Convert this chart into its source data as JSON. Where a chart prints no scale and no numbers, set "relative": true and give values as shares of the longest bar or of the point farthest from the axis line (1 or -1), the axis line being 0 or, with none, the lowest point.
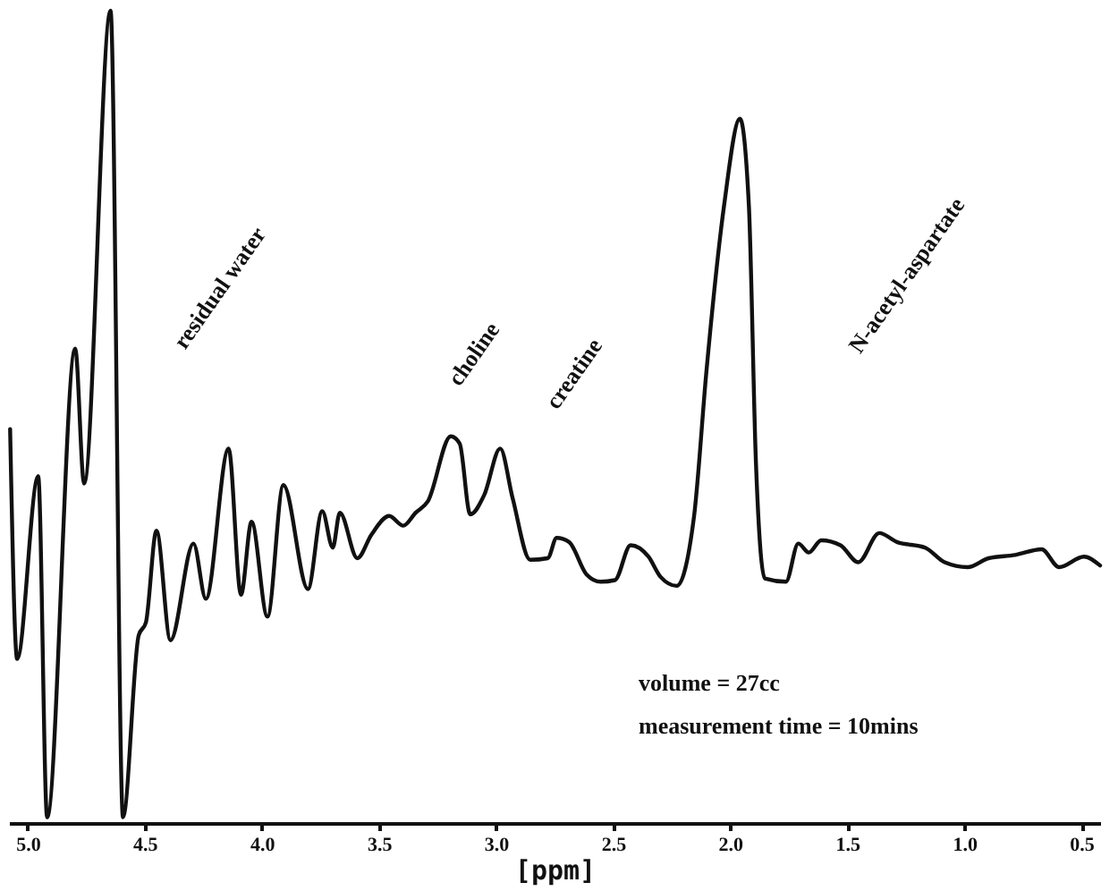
{
  "chart_data": {
    "type": "line",
    "relative": true,
    "xlabel": "[ppm]",
    "xlim": [
      5.08,
      0.42
    ],
    "xticks": [
      {
        "value": 5,
        "label": "5.0"
      },
      4.5,
      {
        "value": 4,
        "label": "4.0"
      },
      3.5,
      {
        "value": 3,
        "label": "3.0"
      },
      2.5,
      {
        "value": 2,
        "label": "2.0"
      },
      1.5,
      {
        "value": 1,
        "label": "1.0"
      },
      0.5
    ],
    "x": [
      5.075,
      5.045,
      4.955,
      4.917,
      4.797,
      4.759,
      4.646,
      4.593,
      4.526,
      4.495,
      4.45,
      4.39,
      4.292,
      4.239,
      4.142,
      4.089,
      4.044,
      3.976,
      3.908,
      3.803,
      3.742,
      3.697,
      3.667,
      3.592,
      3.532,
      3.456,
      3.396,
      3.343,
      3.291,
      3.193,
      3.155,
      3.11,
      3.05,
      2.982,
      2.929,
      2.854,
      2.779,
      2.741,
      2.688,
      2.613,
      2.553,
      2.492,
      2.425,
      2.349,
      2.297,
      2.229,
      2.154,
      2.101,
      2.026,
      1.958,
      1.92,
      1.89,
      1.852,
      1.762,
      1.709,
      1.664,
      1.611,
      1.529,
      1.453,
      1.363,
      1.288,
      1.167,
      1.084,
      0.986,
      0.896,
      0.783,
      0.67,
      0.595,
      0.489,
      0.42
    ],
    "series": [
      {
        "color": "#111111",
        "values": [
          0.485,
          0.202,
          0.427,
          0.007,
          0.584,
          0.418,
          1.0,
          0.007,
          0.231,
          0.247,
          0.36,
          0.225,
          0.344,
          0.276,
          0.461,
          0.281,
          0.371,
          0.254,
          0.416,
          0.288,
          0.384,
          0.339,
          0.382,
          0.326,
          0.355,
          0.378,
          0.366,
          0.382,
          0.396,
          0.476,
          0.467,
          0.38,
          0.404,
          0.461,
          0.4,
          0.324,
          0.326,
          0.351,
          0.346,
          0.306,
          0.297,
          0.299,
          0.342,
          0.328,
          0.303,
          0.292,
          0.378,
          0.557,
          0.76,
          0.867,
          0.76,
          0.445,
          0.301,
          0.297,
          0.344,
          0.333,
          0.348,
          0.342,
          0.321,
          0.357,
          0.346,
          0.339,
          0.321,
          0.315,
          0.326,
          0.33,
          0.337,
          0.315,
          0.328,
          0.317
        ]
      }
    ],
    "grid": false,
    "marker": "none",
    "line_style": "solid",
    "annotations": [
      "residual water",
      "choline",
      "creatine",
      "N-acetyl-aspartate",
      "volume = 27cc",
      "measurement time = 10mins"
    ]
  }
}
